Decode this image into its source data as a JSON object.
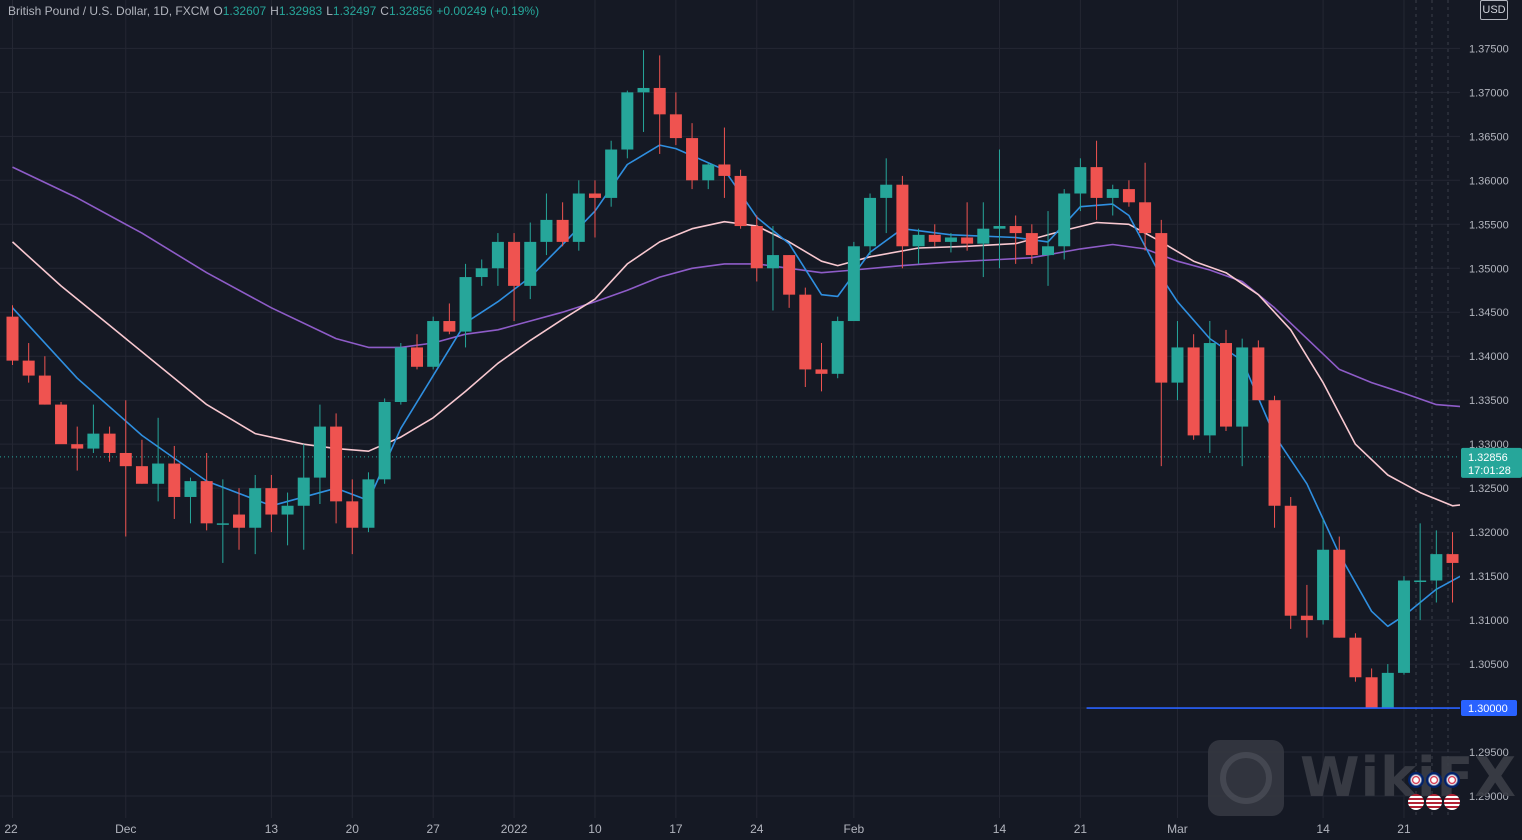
{
  "header": {
    "symbol": "British Pound / U.S. Dollar, 1D, FXCM",
    "o_label": "O",
    "o_value": "1.32607",
    "h_label": "H",
    "h_value": "1.32983",
    "l_label": "L",
    "l_value": "1.32497",
    "c_label": "C",
    "c_value": "1.32856",
    "change": "+0.00249 (+0.19%)"
  },
  "currency_label": "USD",
  "price_tag": {
    "price": "1.32856",
    "countdown": "17:01:28"
  },
  "level_tag": {
    "price": "1.30000"
  },
  "watermark": "WikiFX",
  "colors": {
    "background": "#151924",
    "bull": "#26a69a",
    "bear": "#ef5350",
    "ema_fast": "#2f8fe0",
    "ema_mid": "#f8c8d0",
    "ema_slow": "#8e5cc8",
    "level_line": "#2962ff",
    "grid": "#242733",
    "axis_text": "#b2b5be"
  },
  "chart_data": {
    "type": "candlestick",
    "title": "British Pound / U.S. Dollar, 1D, FXCM",
    "y_range": [
      1.2875,
      1.3805
    ],
    "y_ticks": [
      "1.37500",
      "1.37000",
      "1.36500",
      "1.36000",
      "1.35500",
      "1.35000",
      "1.34500",
      "1.34000",
      "1.33500",
      "1.33000",
      "1.32500",
      "1.32000",
      "1.31500",
      "1.31000",
      "1.30500",
      "1.30000",
      "1.29500",
      "1.29000"
    ],
    "x_ticks": [
      {
        "label": "22",
        "index": 0
      },
      {
        "label": "Dec",
        "index": 7
      },
      {
        "label": "13",
        "index": 16
      },
      {
        "label": "20",
        "index": 21
      },
      {
        "label": "27",
        "index": 26
      },
      {
        "label": "2022",
        "index": 31
      },
      {
        "label": "10",
        "index": 36
      },
      {
        "label": "17",
        "index": 41
      },
      {
        "label": "24",
        "index": 46
      },
      {
        "label": "Feb",
        "index": 52
      },
      {
        "label": "14",
        "index": 61
      },
      {
        "label": "21",
        "index": 66
      },
      {
        "label": "Mar",
        "index": 72
      },
      {
        "label": "14",
        "index": 81
      },
      {
        "label": "21",
        "index": 86
      }
    ],
    "candles": [
      [
        1.3445,
        1.3458,
        1.339,
        1.3395
      ],
      [
        1.3395,
        1.3415,
        1.337,
        1.3378
      ],
      [
        1.3378,
        1.34,
        1.3345,
        1.3345
      ],
      [
        1.3345,
        1.3348,
        1.3305,
        1.33
      ],
      [
        1.33,
        1.332,
        1.327,
        1.3295
      ],
      [
        1.3295,
        1.3345,
        1.329,
        1.3312
      ],
      [
        1.3312,
        1.332,
        1.328,
        1.329
      ],
      [
        1.329,
        1.335,
        1.3195,
        1.3275
      ],
      [
        1.3275,
        1.3305,
        1.3255,
        1.3255
      ],
      [
        1.3255,
        1.333,
        1.3235,
        1.3278
      ],
      [
        1.3278,
        1.3298,
        1.3215,
        1.324
      ],
      [
        1.324,
        1.3262,
        1.321,
        1.3258
      ],
      [
        1.3258,
        1.329,
        1.3202,
        1.321
      ],
      [
        1.321,
        1.326,
        1.3165,
        1.321
      ],
      [
        1.322,
        1.325,
        1.318,
        1.3205
      ],
      [
        1.3205,
        1.3265,
        1.3175,
        1.325
      ],
      [
        1.325,
        1.3265,
        1.32,
        1.322
      ],
      [
        1.322,
        1.3245,
        1.3185,
        1.323
      ],
      [
        1.323,
        1.33,
        1.318,
        1.3262
      ],
      [
        1.3262,
        1.3345,
        1.3232,
        1.332
      ],
      [
        1.332,
        1.3335,
        1.321,
        1.3235
      ],
      [
        1.3235,
        1.326,
        1.3175,
        1.3205
      ],
      [
        1.3205,
        1.3268,
        1.32,
        1.326
      ],
      [
        1.326,
        1.3352,
        1.3255,
        1.3348
      ],
      [
        1.3348,
        1.3415,
        1.3345,
        1.341
      ],
      [
        1.341,
        1.3425,
        1.3385,
        1.3388
      ],
      [
        1.3388,
        1.3445,
        1.3385,
        1.344
      ],
      [
        1.344,
        1.346,
        1.3425,
        1.3428
      ],
      [
        1.3428,
        1.3505,
        1.341,
        1.349
      ],
      [
        1.349,
        1.351,
        1.348,
        1.35
      ],
      [
        1.35,
        1.354,
        1.348,
        1.353
      ],
      [
        1.353,
        1.354,
        1.344,
        1.348
      ],
      [
        1.348,
        1.3552,
        1.3465,
        1.353
      ],
      [
        1.353,
        1.3585,
        1.3515,
        1.3555
      ],
      [
        1.3555,
        1.3575,
        1.3525,
        1.353
      ],
      [
        1.353,
        1.36,
        1.352,
        1.3585
      ],
      [
        1.3585,
        1.36,
        1.3535,
        1.358
      ],
      [
        1.358,
        1.3645,
        1.357,
        1.3635
      ],
      [
        1.3635,
        1.3702,
        1.3625,
        1.37
      ],
      [
        1.37,
        1.3748,
        1.3655,
        1.3705
      ],
      [
        1.3705,
        1.3742,
        1.363,
        1.3675
      ],
      [
        1.3675,
        1.37,
        1.364,
        1.3648
      ],
      [
        1.3648,
        1.3665,
        1.359,
        1.36
      ],
      [
        1.36,
        1.362,
        1.359,
        1.3618
      ],
      [
        1.3618,
        1.366,
        1.358,
        1.3605
      ],
      [
        1.3605,
        1.3612,
        1.3545,
        1.3548
      ],
      [
        1.3548,
        1.356,
        1.3485,
        1.35
      ],
      [
        1.35,
        1.3548,
        1.3452,
        1.3515
      ],
      [
        1.3515,
        1.3515,
        1.3455,
        1.347
      ],
      [
        1.347,
        1.3478,
        1.3365,
        1.3385
      ],
      [
        1.3385,
        1.3415,
        1.336,
        1.338
      ],
      [
        1.338,
        1.3445,
        1.3375,
        1.344
      ],
      [
        1.344,
        1.353,
        1.344,
        1.3525
      ],
      [
        1.3525,
        1.3585,
        1.3515,
        1.358
      ],
      [
        1.358,
        1.3625,
        1.354,
        1.3595
      ],
      [
        1.3595,
        1.3605,
        1.35,
        1.3525
      ],
      [
        1.3525,
        1.3545,
        1.3505,
        1.3538
      ],
      [
        1.3538,
        1.355,
        1.3525,
        1.353
      ],
      [
        1.353,
        1.354,
        1.3518,
        1.3535
      ],
      [
        1.3535,
        1.3575,
        1.352,
        1.3528
      ],
      [
        1.3528,
        1.3575,
        1.349,
        1.3545
      ],
      [
        1.3545,
        1.3635,
        1.35,
        1.3548
      ],
      [
        1.3548,
        1.356,
        1.3505,
        1.354
      ],
      [
        1.354,
        1.355,
        1.3505,
        1.3515
      ],
      [
        1.3515,
        1.3565,
        1.348,
        1.3525
      ],
      [
        1.3525,
        1.359,
        1.351,
        1.3585
      ],
      [
        1.3585,
        1.3625,
        1.3565,
        1.3615
      ],
      [
        1.3615,
        1.3645,
        1.3555,
        1.358
      ],
      [
        1.358,
        1.3595,
        1.356,
        1.359
      ],
      [
        1.359,
        1.36,
        1.357,
        1.3575
      ],
      [
        1.3575,
        1.362,
        1.352,
        1.354
      ],
      [
        1.354,
        1.3555,
        1.3275,
        1.337
      ],
      [
        1.337,
        1.344,
        1.335,
        1.341
      ],
      [
        1.341,
        1.3425,
        1.3305,
        1.331
      ],
      [
        1.331,
        1.344,
        1.329,
        1.3415
      ],
      [
        1.3415,
        1.343,
        1.3315,
        1.332
      ],
      [
        1.332,
        1.342,
        1.3275,
        1.341
      ],
      [
        1.341,
        1.3418,
        1.335,
        1.335
      ],
      [
        1.335,
        1.3355,
        1.3205,
        1.323
      ],
      [
        1.323,
        1.324,
        1.309,
        1.3105
      ],
      [
        1.3105,
        1.314,
        1.308,
        1.31
      ],
      [
        1.31,
        1.3215,
        1.3095,
        1.318
      ],
      [
        1.318,
        1.3195,
        1.308,
        1.308
      ],
      [
        1.308,
        1.3085,
        1.303,
        1.3035
      ],
      [
        1.3035,
        1.3045,
        1.3,
        1.3
      ],
      [
        1.3,
        1.305,
        1.3,
        1.304
      ],
      [
        1.304,
        1.315,
        1.3038,
        1.3145
      ],
      [
        1.3145,
        1.321,
        1.31,
        1.3145
      ],
      [
        1.3145,
        1.3202,
        1.312,
        1.3175
      ],
      [
        1.3175,
        1.32,
        1.312,
        1.3165
      ],
      [
        1.3165,
        1.3262,
        1.312,
        1.326
      ],
      [
        1.3261,
        1.3298,
        1.325,
        1.3286
      ]
    ],
    "ema_fast": [
      [
        0,
        1.3455
      ],
      [
        4,
        1.3375
      ],
      [
        8,
        1.331
      ],
      [
        12,
        1.3258
      ],
      [
        16,
        1.323
      ],
      [
        20,
        1.325
      ],
      [
        22,
        1.3236
      ],
      [
        24,
        1.3318
      ],
      [
        26,
        1.3378
      ],
      [
        28,
        1.3438
      ],
      [
        30,
        1.3462
      ],
      [
        32,
        1.349
      ],
      [
        34,
        1.3527
      ],
      [
        36,
        1.3565
      ],
      [
        38,
        1.3618
      ],
      [
        40,
        1.364
      ],
      [
        41,
        1.3636
      ],
      [
        44,
        1.3612
      ],
      [
        46,
        1.3558
      ],
      [
        48,
        1.3528
      ],
      [
        50,
        1.347
      ],
      [
        51,
        1.3468
      ],
      [
        53,
        1.3518
      ],
      [
        55,
        1.3545
      ],
      [
        58,
        1.3538
      ],
      [
        62,
        1.3535
      ],
      [
        64,
        1.353
      ],
      [
        66,
        1.357
      ],
      [
        68,
        1.3573
      ],
      [
        69,
        1.356
      ],
      [
        70,
        1.3525
      ],
      [
        71,
        1.349
      ],
      [
        72,
        1.3462
      ],
      [
        74,
        1.342
      ],
      [
        76,
        1.3395
      ],
      [
        78,
        1.331
      ],
      [
        80,
        1.3255
      ],
      [
        82,
        1.3175
      ],
      [
        84,
        1.311
      ],
      [
        85,
        1.3093
      ],
      [
        86,
        1.3105
      ],
      [
        88,
        1.3135
      ],
      [
        90,
        1.3155
      ],
      [
        92,
        1.32
      ]
    ],
    "ema_mid": [
      [
        0,
        1.353
      ],
      [
        3,
        1.348
      ],
      [
        6,
        1.3435
      ],
      [
        9,
        1.339
      ],
      [
        12,
        1.3345
      ],
      [
        15,
        1.3312
      ],
      [
        18,
        1.33
      ],
      [
        20,
        1.3295
      ],
      [
        22,
        1.3292
      ],
      [
        24,
        1.3308
      ],
      [
        26,
        1.333
      ],
      [
        28,
        1.336
      ],
      [
        30,
        1.3392
      ],
      [
        32,
        1.3418
      ],
      [
        34,
        1.3442
      ],
      [
        36,
        1.3465
      ],
      [
        38,
        1.3505
      ],
      [
        40,
        1.353
      ],
      [
        42,
        1.3545
      ],
      [
        44,
        1.3553
      ],
      [
        46,
        1.3548
      ],
      [
        48,
        1.353
      ],
      [
        50,
        1.3508
      ],
      [
        51,
        1.3503
      ],
      [
        53,
        1.3513
      ],
      [
        56,
        1.3523
      ],
      [
        59,
        1.3525
      ],
      [
        62,
        1.3528
      ],
      [
        65,
        1.3543
      ],
      [
        67,
        1.3552
      ],
      [
        69,
        1.355
      ],
      [
        71,
        1.353
      ],
      [
        73,
        1.3508
      ],
      [
        75,
        1.3495
      ],
      [
        77,
        1.347
      ],
      [
        79,
        1.343
      ],
      [
        81,
        1.337
      ],
      [
        83,
        1.33
      ],
      [
        85,
        1.3265
      ],
      [
        87,
        1.3245
      ],
      [
        89,
        1.323
      ],
      [
        90,
        1.3232
      ],
      [
        92,
        1.324
      ]
    ],
    "ema_slow": [
      [
        0,
        1.3615
      ],
      [
        4,
        1.358
      ],
      [
        8,
        1.354
      ],
      [
        12,
        1.3495
      ],
      [
        16,
        1.3455
      ],
      [
        20,
        1.342
      ],
      [
        22,
        1.341
      ],
      [
        24,
        1.341
      ],
      [
        26,
        1.3415
      ],
      [
        28,
        1.3425
      ],
      [
        30,
        1.343
      ],
      [
        32,
        1.344
      ],
      [
        34,
        1.345
      ],
      [
        36,
        1.3462
      ],
      [
        38,
        1.3475
      ],
      [
        40,
        1.349
      ],
      [
        42,
        1.35
      ],
      [
        44,
        1.3505
      ],
      [
        46,
        1.3505
      ],
      [
        48,
        1.35
      ],
      [
        50,
        1.3495
      ],
      [
        52,
        1.3498
      ],
      [
        55,
        1.3503
      ],
      [
        58,
        1.3507
      ],
      [
        61,
        1.351
      ],
      [
        63,
        1.3512
      ],
      [
        66,
        1.3522
      ],
      [
        68,
        1.3527
      ],
      [
        70,
        1.3522
      ],
      [
        72,
        1.3508
      ],
      [
        74,
        1.3498
      ],
      [
        76,
        1.3485
      ],
      [
        78,
        1.3455
      ],
      [
        80,
        1.342
      ],
      [
        82,
        1.3385
      ],
      [
        84,
        1.337
      ],
      [
        86,
        1.3358
      ],
      [
        88,
        1.3345
      ],
      [
        90,
        1.3342
      ],
      [
        92,
        1.3342
      ]
    ],
    "horizontal_level": 1.3,
    "level_start_index": 67,
    "last_price": 1.32856,
    "grid": true
  }
}
